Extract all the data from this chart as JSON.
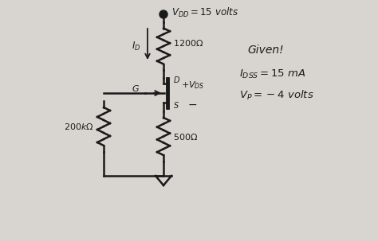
{
  "background_color": "#d8d5d0",
  "vdd_label": "$V_{DD} = 15$ volts",
  "rd_label": "$1200\\Omega$",
  "idd_label": "$I_D$",
  "rs_label": "$500\\Omega$",
  "rg_label": "$200k\\Omega$",
  "given_label": "Given!",
  "idss_label": "$I_{DSS} = 15$ mA",
  "vp_label": "$V_P = -4$ volts",
  "g_label": "G",
  "s_label": "S",
  "d_label": "D",
  "vds_plus": "$+ V_{DS}$",
  "vds_minus": "$-$"
}
